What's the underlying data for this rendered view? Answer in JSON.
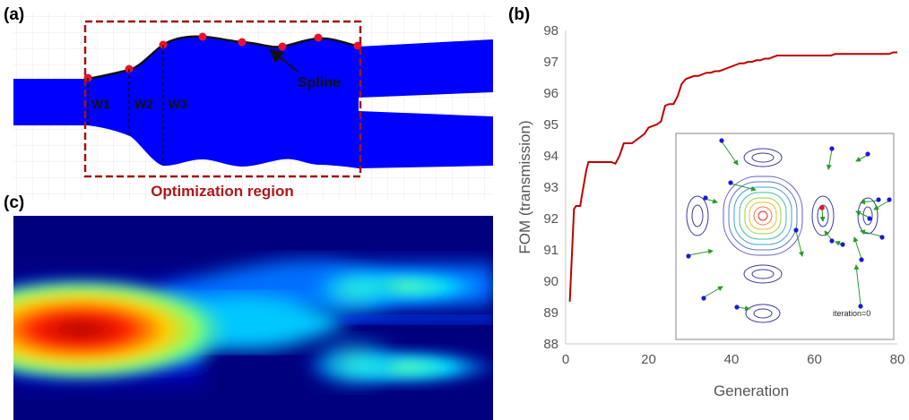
{
  "panels": {
    "a": {
      "label": "(a)",
      "width_labels": [
        "W1",
        "W2",
        "W3"
      ],
      "spline_label": "Spline",
      "region_label": "Optimization region",
      "colors": {
        "waveguide": "#0000ff",
        "control_point": "#e8112d",
        "region_box": "#a01515"
      }
    },
    "b": {
      "label": "(b)",
      "inset_label": "iteration=0"
    },
    "c": {
      "label": "(c)",
      "colormap": "jet"
    }
  },
  "chart_data": {
    "type": "line",
    "xlabel": "Generation",
    "ylabel": "FOM (transmission)",
    "xlim": [
      0,
      80
    ],
    "ylim": [
      88,
      98
    ],
    "xticks": [
      0,
      20,
      40,
      60,
      80
    ],
    "yticks": [
      88,
      89,
      90,
      91,
      92,
      93,
      94,
      95,
      96,
      97,
      98
    ],
    "color": "#c00000",
    "x": [
      1,
      2,
      2.5,
      3.5,
      4,
      5,
      5.5,
      11,
      12,
      13,
      14,
      15,
      16,
      17,
      18,
      19,
      20,
      21,
      22,
      23,
      24,
      25,
      26,
      27,
      28,
      29,
      30,
      31,
      32,
      33,
      34,
      35,
      36,
      37,
      38,
      39,
      40,
      41,
      42,
      43,
      44,
      45,
      46,
      47,
      48,
      49,
      50,
      51,
      52,
      60,
      64,
      65,
      66,
      70,
      78,
      79,
      80
    ],
    "y": [
      89.35,
      92.3,
      92.4,
      92.4,
      92.8,
      93.55,
      93.8,
      93.8,
      93.75,
      94.0,
      94.4,
      94.4,
      94.4,
      94.5,
      94.6,
      94.7,
      94.9,
      94.95,
      95.0,
      95.1,
      95.6,
      95.65,
      95.65,
      95.9,
      96.3,
      96.45,
      96.5,
      96.55,
      96.55,
      96.6,
      96.65,
      96.65,
      96.7,
      96.7,
      96.75,
      96.8,
      96.85,
      96.9,
      96.95,
      96.95,
      97.0,
      97.0,
      97.05,
      97.05,
      97.1,
      97.1,
      97.15,
      97.2,
      97.2,
      97.2,
      97.2,
      97.25,
      97.25,
      97.25,
      97.25,
      97.3,
      97.3
    ],
    "grid": false
  }
}
